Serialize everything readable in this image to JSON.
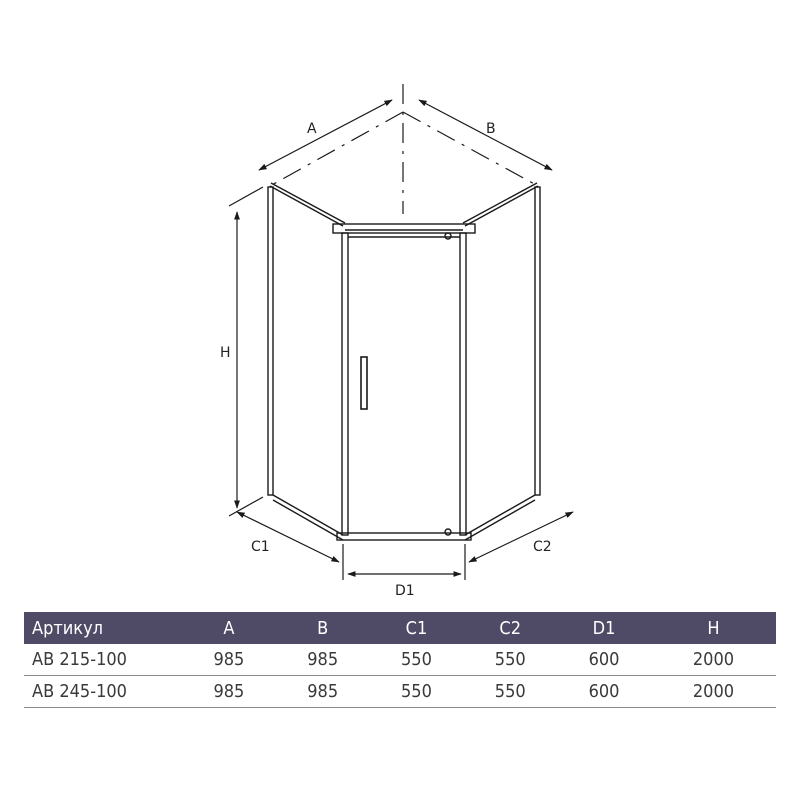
{
  "diagram": {
    "labels": {
      "a": "A",
      "b": "B",
      "h": "H",
      "c1": "C1",
      "c2": "C2",
      "d1": "D1"
    },
    "line_color": "#1a1a1a"
  },
  "table": {
    "header_bg": "#4f4b67",
    "headers": [
      "Артикул",
      "A",
      "B",
      "C1",
      "C2",
      "D1",
      "H"
    ],
    "rows": [
      [
        "AB 215-100",
        "985",
        "985",
        "550",
        "550",
        "600",
        "2000"
      ],
      [
        "AB 245-100",
        "985",
        "985",
        "550",
        "550",
        "600",
        "2000"
      ]
    ]
  }
}
